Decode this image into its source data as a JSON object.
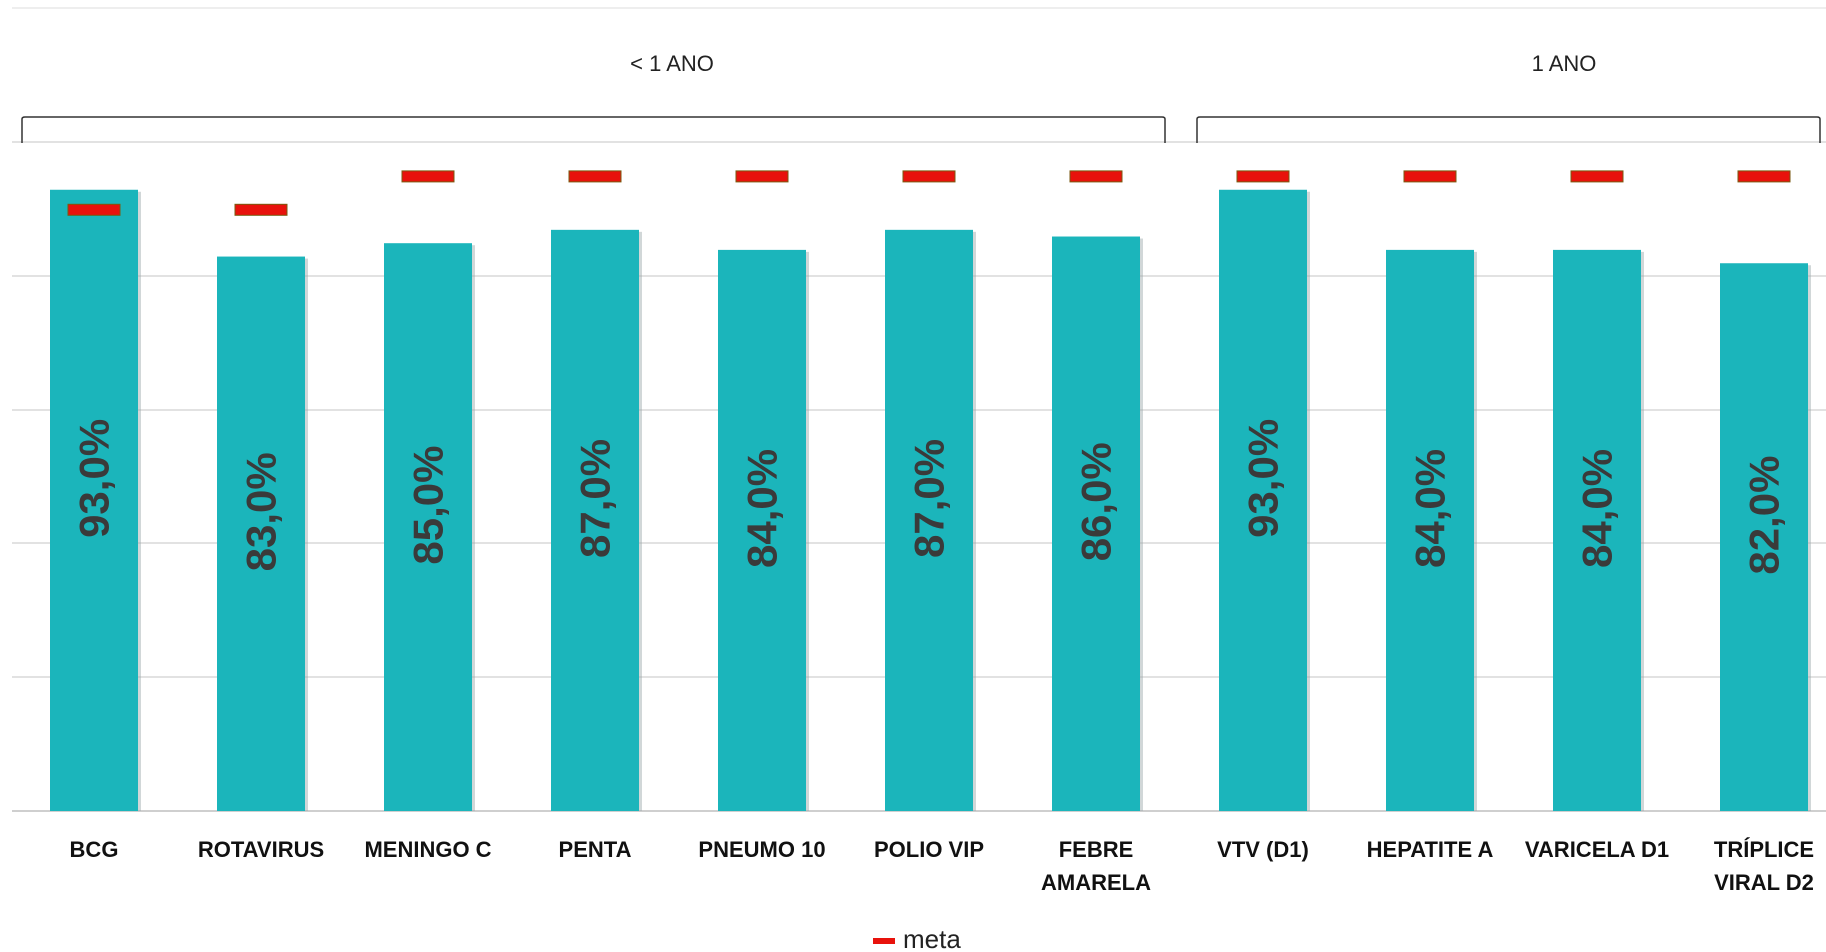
{
  "chart_data": {
    "type": "bar",
    "categories": [
      "BCG",
      "ROTAVIRUS",
      "MENINGO C",
      "PENTA",
      "PNEUMO 10",
      "POLIO VIP",
      "FEBRE AMARELA",
      "VTV (D1)",
      "HEPATITE A",
      "VARICELA D1",
      "TRÍPLICE VIRAL D2"
    ],
    "series": [
      {
        "values": [
          93.0,
          83.0,
          85.0,
          87.0,
          84.0,
          87.0,
          86.0,
          93.0,
          84.0,
          84.0,
          82.0
        ],
        "labels": [
          "93,0%",
          "83,0%",
          "85,0%",
          "87,0%",
          "84,0%",
          "87,0%",
          "86,0%",
          "93,0%",
          "84,0%",
          "84,0%",
          "82,0%"
        ],
        "color": "#1bb5bb"
      },
      {
        "name": "meta",
        "type": "marker",
        "values": [
          90,
          90,
          95,
          95,
          95,
          95,
          95,
          95,
          95,
          95,
          95
        ],
        "color": "#e8120c"
      }
    ],
    "groups": [
      {
        "label": "< 1 ANO",
        "categories": [
          "BCG",
          "ROTAVIRUS",
          "MENINGO C",
          "PENTA",
          "PNEUMO 10",
          "POLIO VIP",
          "FEBRE AMARELA"
        ]
      },
      {
        "label": "1 ANO",
        "categories": [
          "VTV (D1)",
          "HEPATITE A",
          "VARICELA D1",
          "TRÍPLICE VIRAL D2"
        ]
      }
    ],
    "ylim": [
      0,
      100
    ],
    "grid": true,
    "legend": "bottom",
    "title": "",
    "xlabel": "",
    "ylabel": ""
  }
}
